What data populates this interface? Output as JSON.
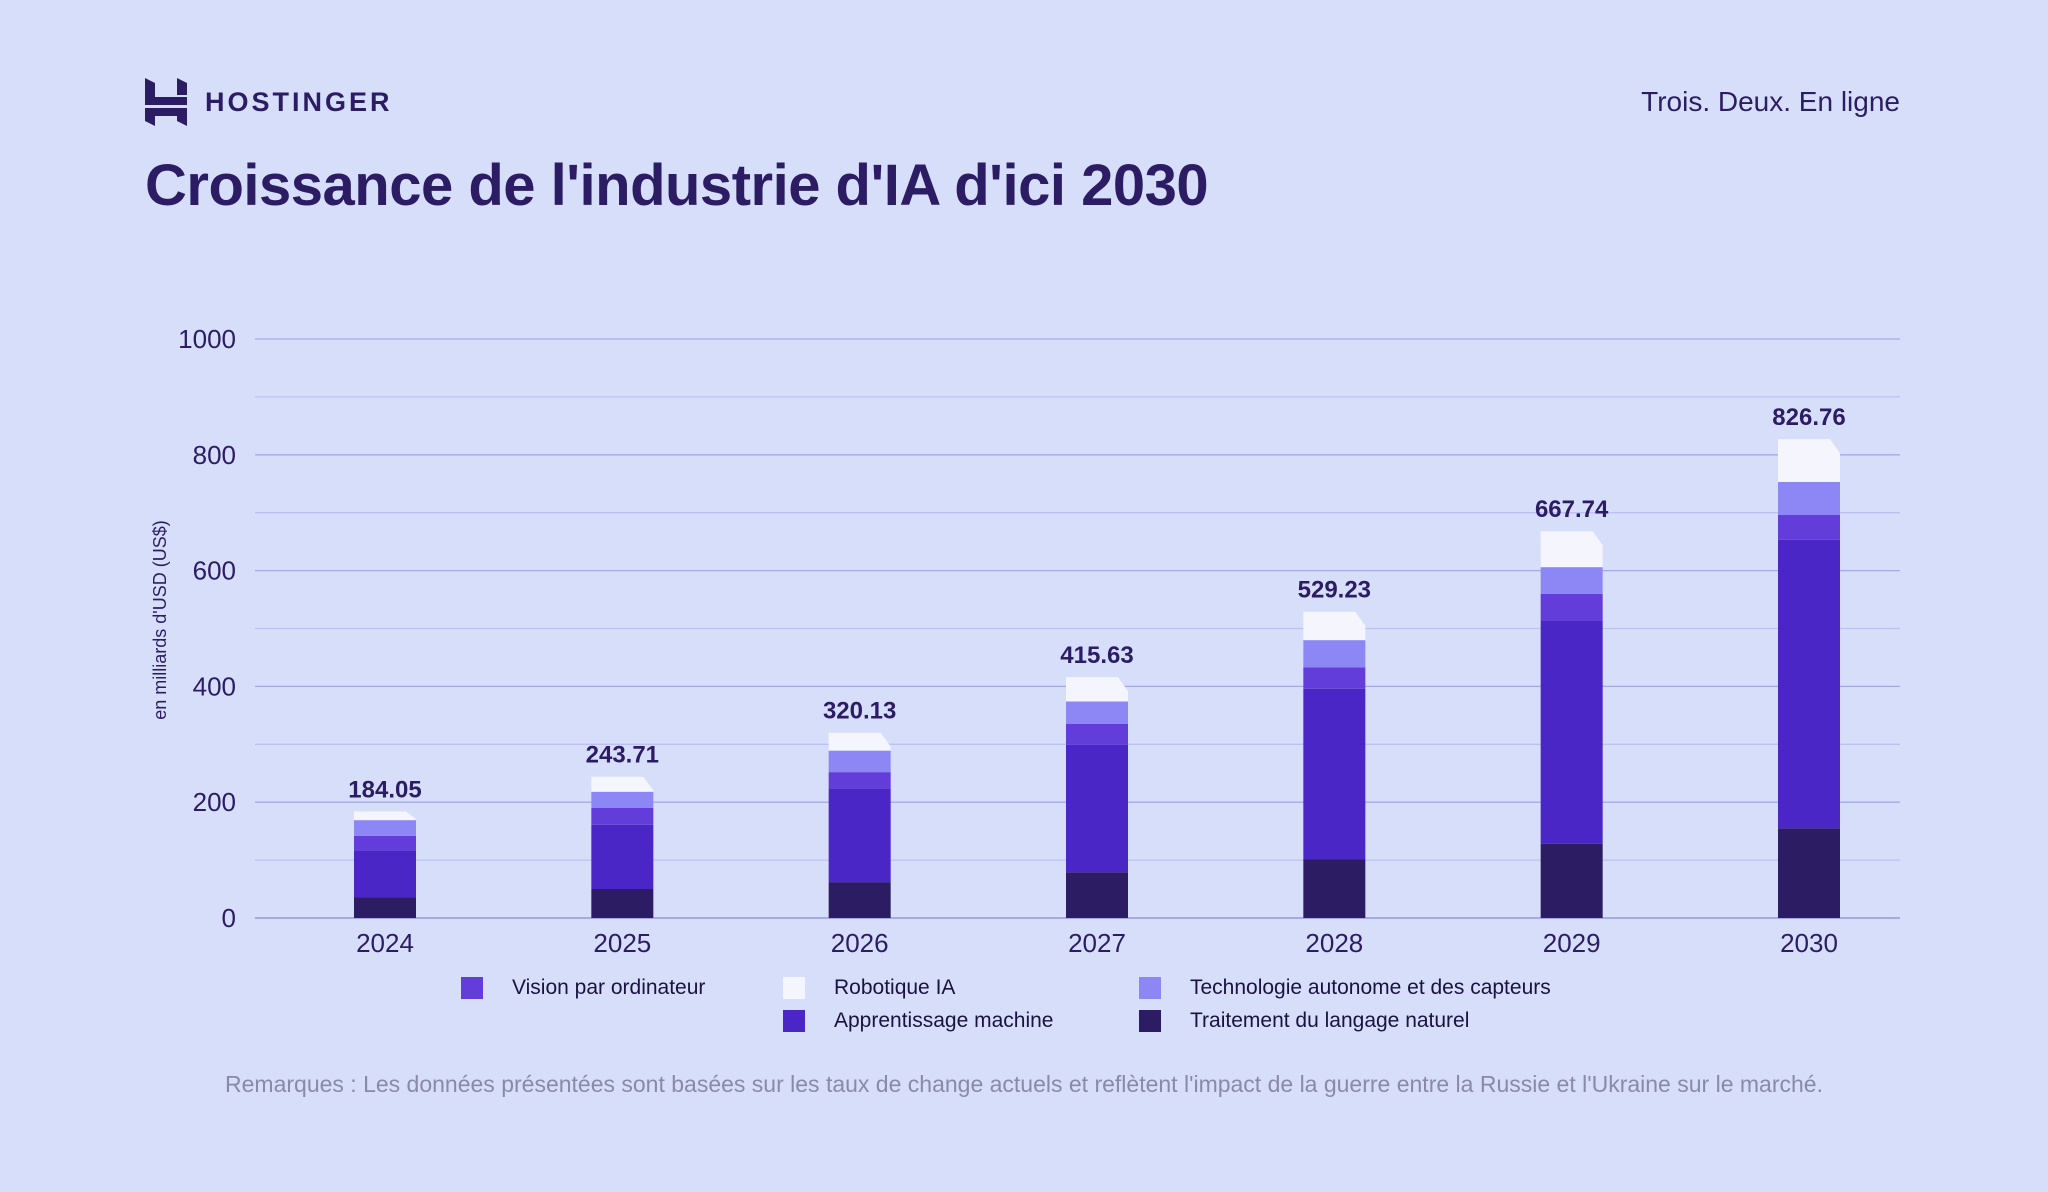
{
  "brand": {
    "name": "HOSTINGER",
    "tagline": "Trois. Deux. En ligne"
  },
  "title": "Croissance de l'industrie d'IA d'ici 2030",
  "footnote": "Remarques : Les données présentées sont basées sur les taux de change actuels et reflètent l'impact de la guerre entre la Russie et l'Ukraine sur le marché.",
  "chart_data": {
    "type": "bar",
    "stacked": true,
    "title": "Croissance de l'industrie d'IA d'ici 2030",
    "xlabel": "",
    "ylabel": "en milliards d'USD (US$)",
    "ylim": [
      0,
      1000
    ],
    "yticks": [
      0,
      200,
      400,
      600,
      800,
      1000
    ],
    "grid": true,
    "legend_position": "bottom",
    "categories": [
      "2024",
      "2025",
      "2026",
      "2027",
      "2028",
      "2029",
      "2030"
    ],
    "totals": [
      "184.05",
      "243.71",
      "320.13",
      "415.63",
      "529.23",
      "667.74",
      "826.76"
    ],
    "series": [
      {
        "name": "Traitement du langage naturel",
        "color": "#2b1c63",
        "values": [
          36,
          50,
          62,
          79,
          101,
          128,
          155
        ]
      },
      {
        "name": "Apprentissage machine",
        "color": "#4a26c7",
        "values": [
          81,
          111,
          162,
          220,
          295,
          386,
          498
        ]
      },
      {
        "name": "Vision par ordinateur",
        "color": "#633dd9",
        "values": [
          25,
          29,
          28,
          36,
          37,
          46,
          43
        ]
      },
      {
        "name": "Technologie autonome et des capteurs",
        "color": "#8d87f5",
        "values": [
          27,
          28,
          37,
          39,
          47,
          46,
          57
        ]
      },
      {
        "name": "Robotique IA",
        "color": "#f4f5fd",
        "values": [
          15,
          26,
          31,
          42,
          49,
          62,
          74
        ]
      }
    ]
  }
}
